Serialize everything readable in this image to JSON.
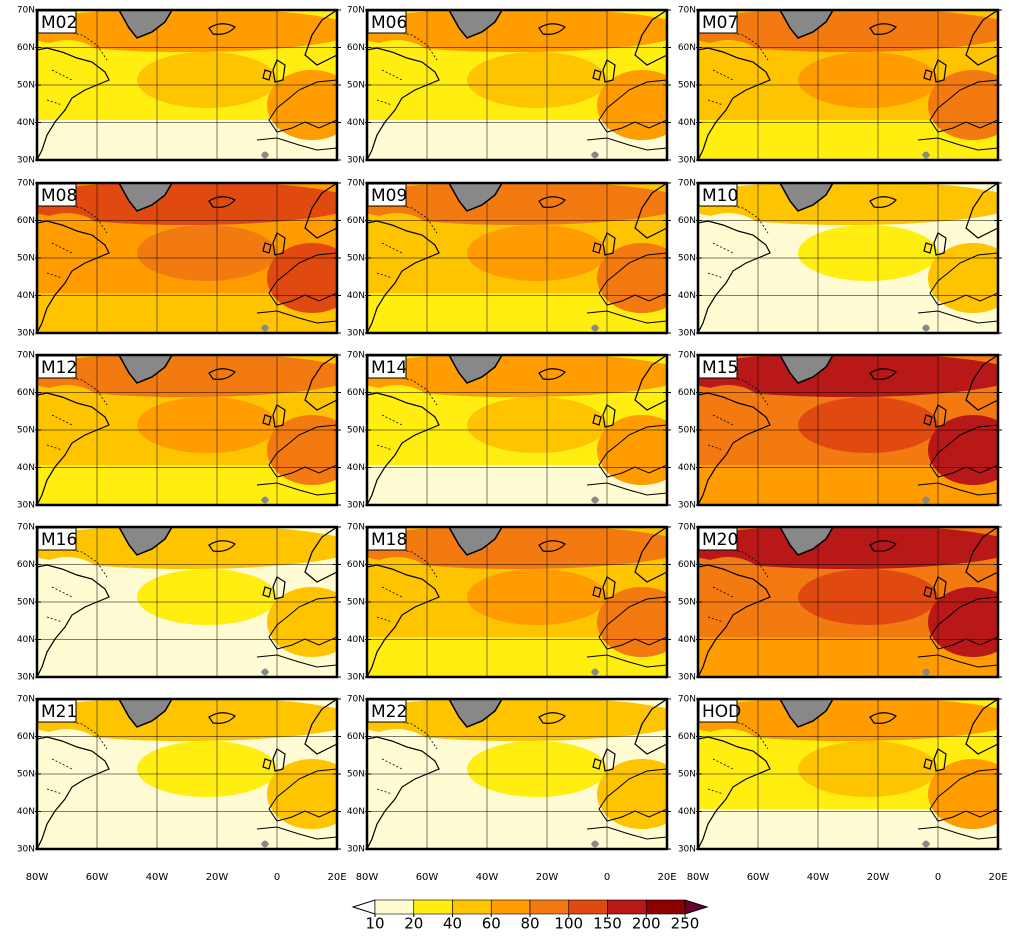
{
  "panels": [
    "M02",
    "M06",
    "M07",
    "M08",
    "M09",
    "M10",
    "M12",
    "M14",
    "M15",
    "M16",
    "M18",
    "M20",
    "M21",
    "M22",
    "HOD"
  ],
  "lat_labels": [
    "70N",
    "60N",
    "50N",
    "40N",
    "30N"
  ],
  "lon_labels": [
    "80W",
    "60W",
    "40W",
    "20W",
    "0",
    "20E"
  ],
  "colorbar": {
    "ticks": [
      10,
      20,
      40,
      60,
      80,
      100,
      150,
      200,
      250
    ]
  }
}
